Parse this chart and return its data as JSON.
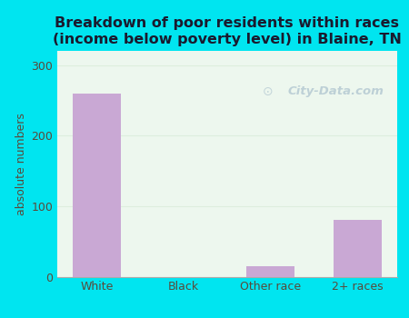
{
  "categories": [
    "White",
    "Black",
    "Other race",
    "2+ races"
  ],
  "values": [
    260,
    0,
    15,
    80
  ],
  "bar_color": "#c9a8d4",
  "title_line1": "Breakdown of poor residents within races",
  "title_line2": "(income below poverty level) in Blaine, TN",
  "ylabel": "absolute numbers",
  "ylim": [
    0,
    320
  ],
  "yticks": [
    0,
    100,
    200,
    300
  ],
  "background_outer": "#00e5f0",
  "background_inner_tl": "#e8f5e0",
  "background_inner_br": "#f8fff8",
  "grid_color": "#ddeedd",
  "title_color": "#1a1a2e",
  "tick_color": "#5a4a3a",
  "axis_label_color": "#5a4a3a",
  "watermark": "City-Data.com",
  "watermark_color": "#b8ccd4"
}
